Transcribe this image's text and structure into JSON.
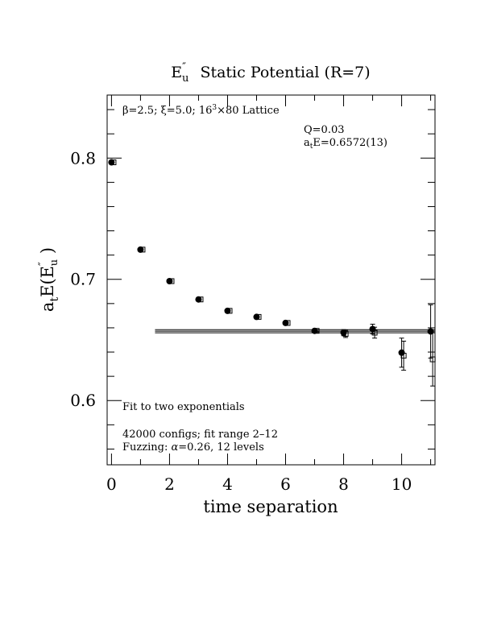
{
  "chart_data": {
    "type": "scatter",
    "title": {
      "main": "E",
      "main_sup": "″",
      "main_sub": "u",
      "rest": " Static Potential (R=7)"
    },
    "xlabel": "time separation",
    "ylabel": {
      "a": "a",
      "t": "t",
      "e": "E(E",
      "sup": "″",
      "sub": "u",
      "close": " )"
    },
    "xlim": [
      -0.15,
      11.15
    ],
    "ylim": [
      0.547,
      0.852
    ],
    "x_ticks": [
      0,
      2,
      4,
      6,
      8,
      10
    ],
    "x_tick_labels": [
      "0",
      "2",
      "4",
      "6",
      "8",
      "10"
    ],
    "y_ticks": [
      0.6,
      0.7,
      0.8
    ],
    "y_tick_labels": [
      "0.6",
      "0.7",
      "0.8"
    ],
    "x_minor_step": 1,
    "y_minor_step": 0.02,
    "grid": false,
    "annotations": {
      "lattice": {
        "beta": "β=2.5; ",
        "xi": "ξ=5.0; 16",
        "sup3": "3",
        "rest": "×80 Lattice"
      },
      "q": "Q=0.03",
      "ate": {
        "a": "a",
        "t": "t",
        "rest": "E=0.6572(13)"
      },
      "fit_label": "Fit to two exponentials",
      "configs": "42000 configs; fit range 2–12",
      "fuzzing": {
        "prefix": "Fuzzing: ",
        "alpha": "α",
        "rest": "=0.26, 12 levels"
      }
    },
    "fit": {
      "value": 0.6572,
      "error": 0.0013,
      "x_start": 1.5,
      "x_end": 11.15
    },
    "series": [
      {
        "marker": "filled-circle",
        "points": [
          {
            "x": 0,
            "y": 0.7965,
            "err": 0
          },
          {
            "x": 1,
            "y": 0.7245,
            "err": 0
          },
          {
            "x": 2,
            "y": 0.6985,
            "err": 0
          },
          {
            "x": 3,
            "y": 0.6834,
            "err": 0
          },
          {
            "x": 4,
            "y": 0.674,
            "err": 0
          },
          {
            "x": 5,
            "y": 0.669,
            "err": 0
          },
          {
            "x": 6,
            "y": 0.664,
            "err": 0
          },
          {
            "x": 7,
            "y": 0.6575,
            "err": 0.0008
          },
          {
            "x": 8,
            "y": 0.656,
            "err": 0.0025
          },
          {
            "x": 9,
            "y": 0.659,
            "err": 0.004
          },
          {
            "x": 10,
            "y": 0.6395,
            "err": 0.012
          },
          {
            "x": 11,
            "y": 0.657,
            "err": 0.022
          }
        ]
      },
      {
        "marker": "open-square",
        "points": [
          {
            "x": 0.07,
            "y": 0.7965,
            "err": 0
          },
          {
            "x": 1.07,
            "y": 0.7245,
            "err": 0
          },
          {
            "x": 2.07,
            "y": 0.6985,
            "err": 0
          },
          {
            "x": 3.07,
            "y": 0.6834,
            "err": 0
          },
          {
            "x": 4.07,
            "y": 0.674,
            "err": 0
          },
          {
            "x": 5.07,
            "y": 0.669,
            "err": 0
          },
          {
            "x": 6.07,
            "y": 0.664,
            "err": 0
          },
          {
            "x": 7.07,
            "y": 0.6575,
            "err": 0.0008
          },
          {
            "x": 8.07,
            "y": 0.655,
            "err": 0.003
          },
          {
            "x": 9.07,
            "y": 0.656,
            "err": 0.0045
          },
          {
            "x": 10.07,
            "y": 0.637,
            "err": 0.012
          },
          {
            "x": 11.07,
            "y": 0.634,
            "err": 0.022
          }
        ]
      }
    ]
  }
}
